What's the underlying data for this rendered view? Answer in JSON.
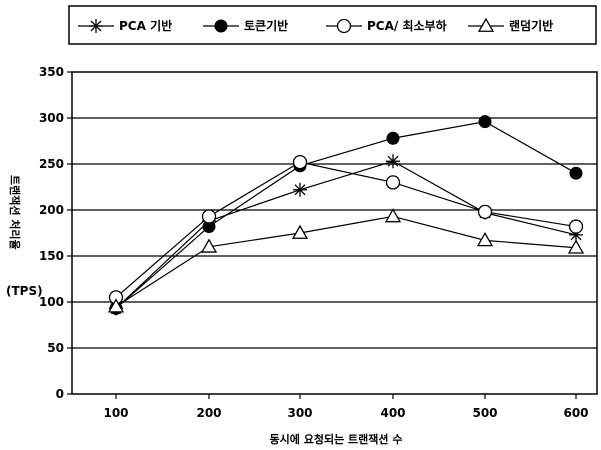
{
  "chart_data": {
    "type": "line",
    "title": "",
    "xlabel": "동시에 요청되는 트랜잭션 수",
    "ylabel": "트랜잭션 처리율",
    "ylabel_unit": "(TPS)",
    "categories": [
      "100",
      "200",
      "300",
      "400",
      "500",
      "600"
    ],
    "ylim": [
      0,
      350
    ],
    "yticks": [
      0,
      50,
      100,
      150,
      200,
      250,
      300,
      350
    ],
    "grid": "horizontal",
    "legend_position": "top",
    "series": [
      {
        "name": "PCA 기반",
        "marker": "asterisk",
        "values": [
          93,
          188,
          222,
          253,
          197,
          173
        ]
      },
      {
        "name": "토큰기반",
        "marker": "filled-circle",
        "values": [
          93,
          182,
          248,
          278,
          296,
          240
        ]
      },
      {
        "name": "PCA/ 최소부하",
        "marker": "open-circle",
        "values": [
          105,
          193,
          252,
          230,
          198,
          182
        ]
      },
      {
        "name": "랜덤기반",
        "marker": "open-triangle",
        "values": [
          95,
          160,
          175,
          193,
          167,
          159
        ]
      }
    ]
  },
  "colors": {
    "line": "#000000",
    "grid": "#000000",
    "background": "#ffffff"
  }
}
